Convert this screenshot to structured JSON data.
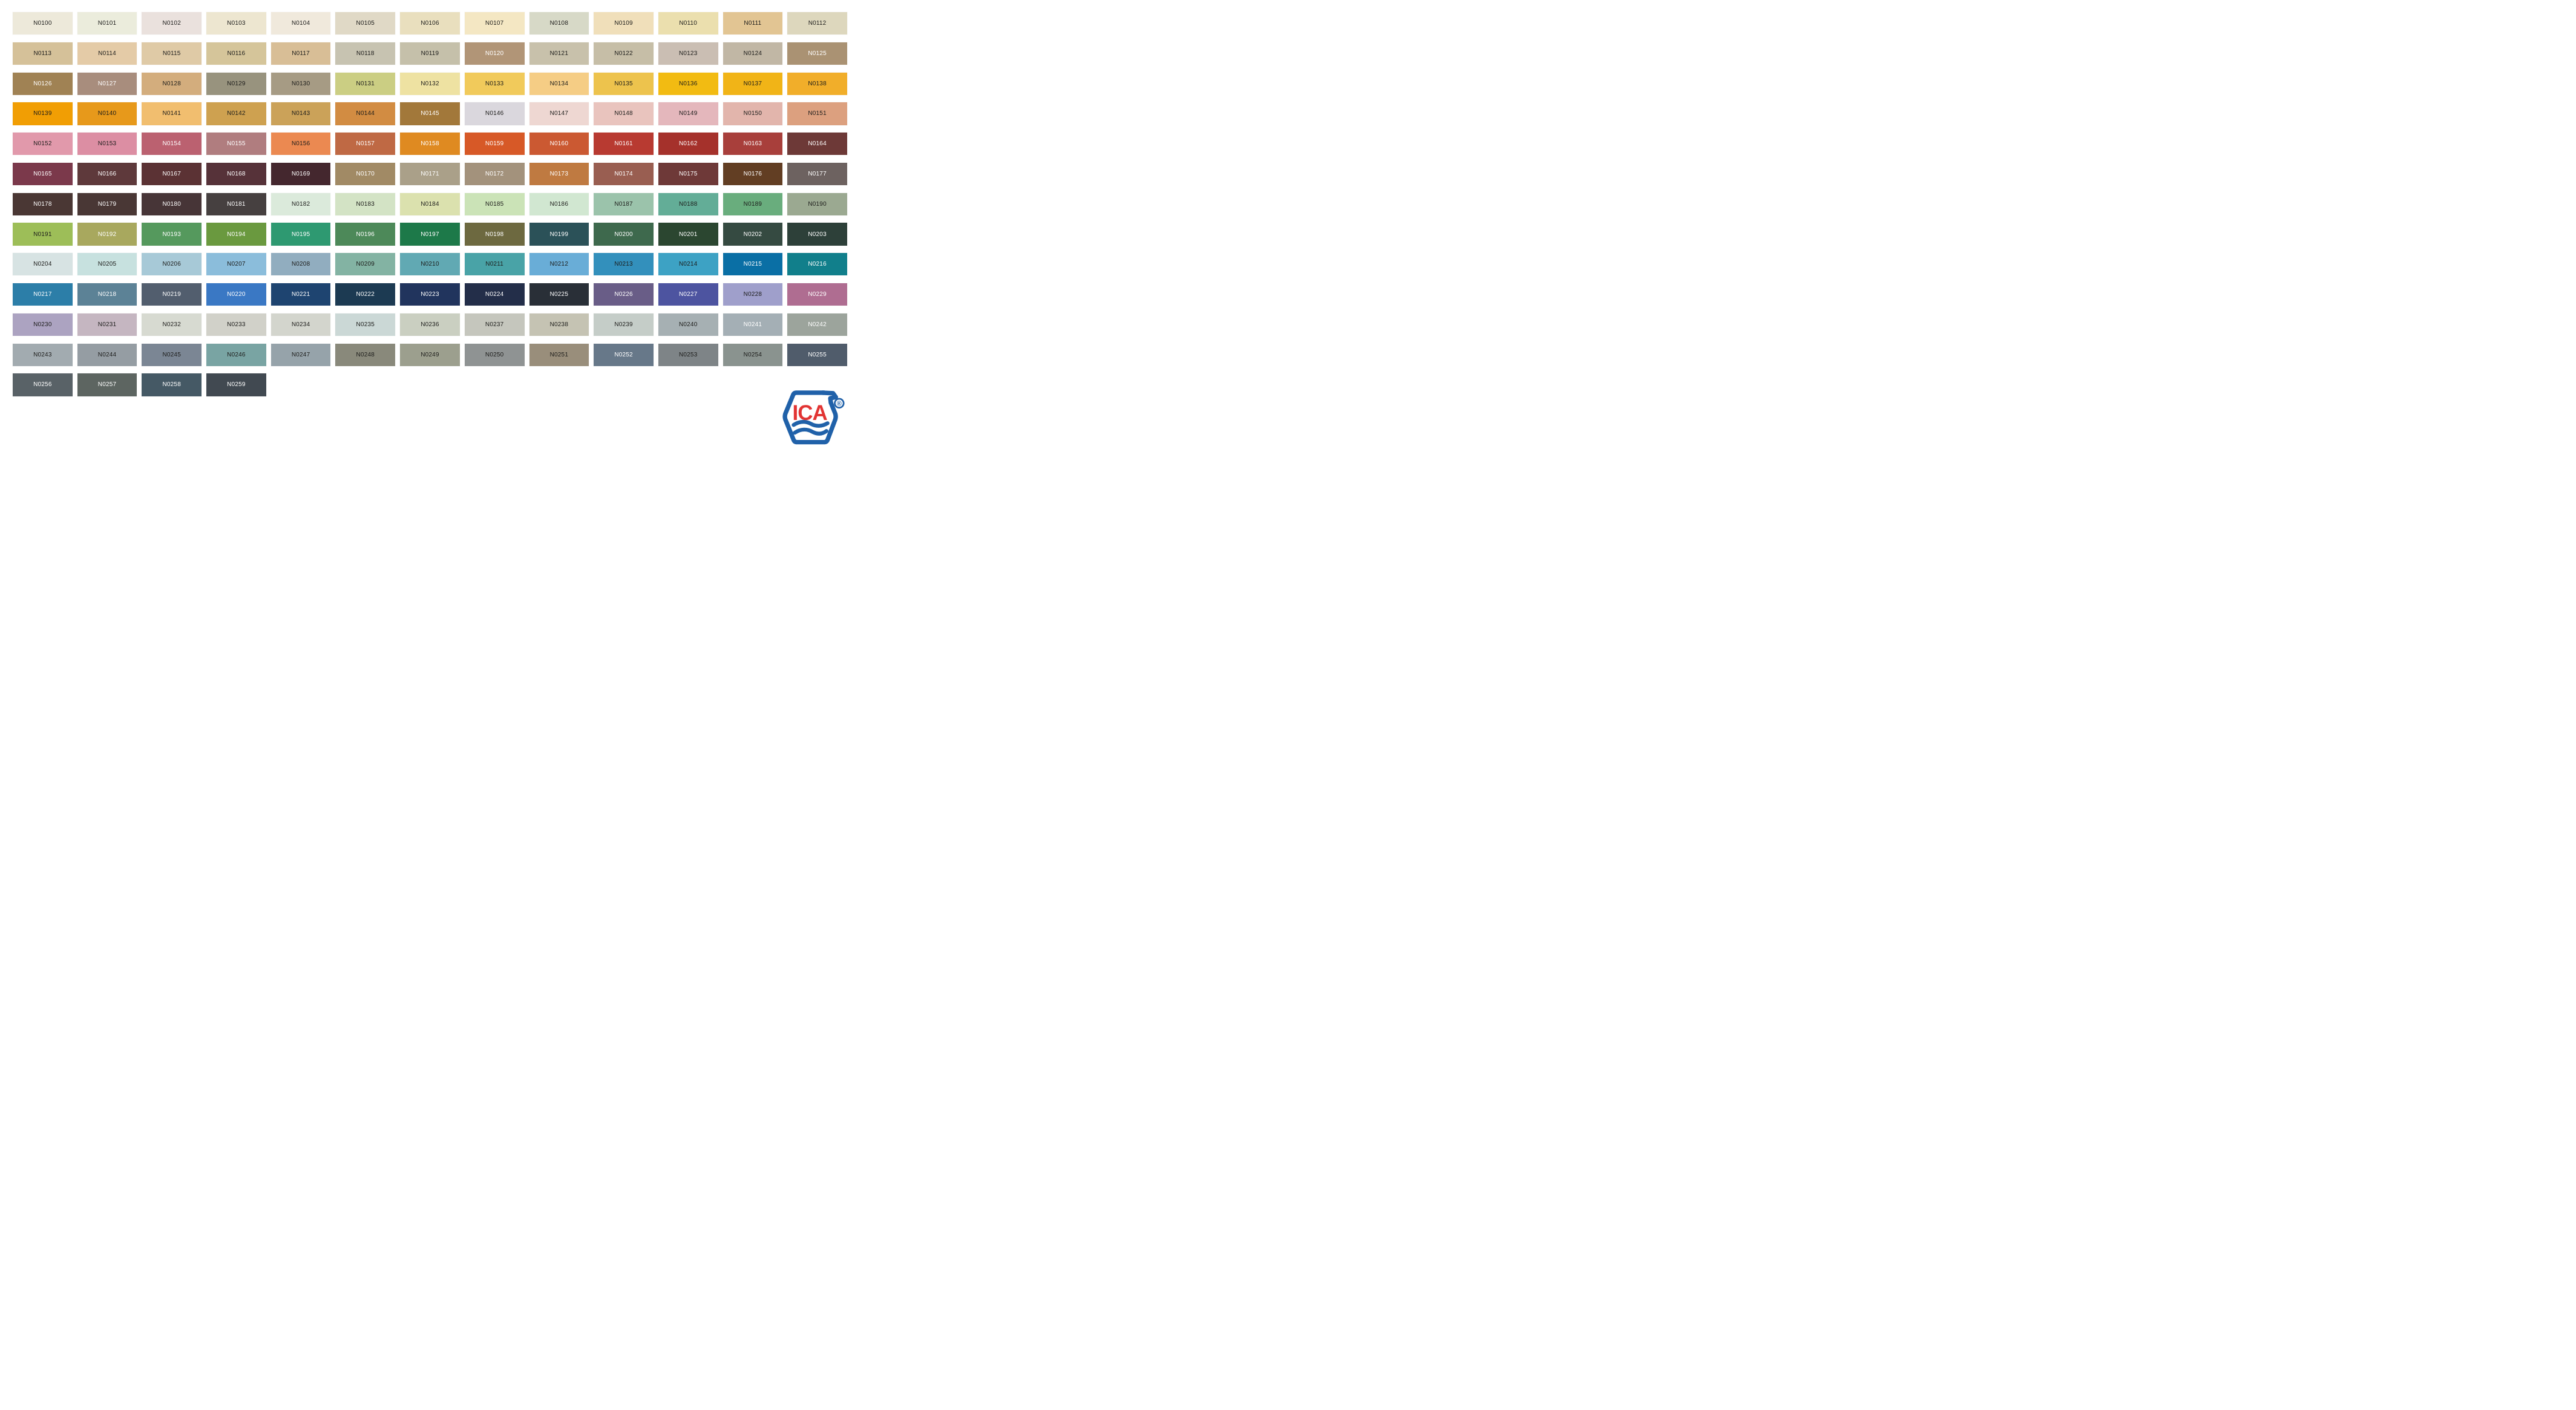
{
  "page": {
    "background": "#ffffff"
  },
  "label_colors": {
    "dark": "#1c1c1a",
    "light": "#ffffff"
  },
  "logo": {
    "text": "ICA",
    "registered": "®",
    "blue": "#2061A9",
    "red": "#E23433"
  },
  "grid": {
    "columns": 13,
    "rows": 13,
    "total_swatches": 160
  },
  "swatches": [
    {
      "code": "N0100",
      "color": "#EDE9DA",
      "label": "dark"
    },
    {
      "code": "N0101",
      "color": "#EBECDC",
      "label": "dark"
    },
    {
      "code": "N0102",
      "color": "#EAE1DD",
      "label": "dark"
    },
    {
      "code": "N0103",
      "color": "#EDE6D0",
      "label": "dark"
    },
    {
      "code": "N0104",
      "color": "#F0E9DC",
      "label": "dark"
    },
    {
      "code": "N0105",
      "color": "#E0D9C6",
      "label": "dark"
    },
    {
      "code": "N0106",
      "color": "#E9DFBE",
      "label": "dark"
    },
    {
      "code": "N0107",
      "color": "#F4E7C3",
      "label": "dark"
    },
    {
      "code": "N0108",
      "color": "#D7D9C7",
      "label": "dark"
    },
    {
      "code": "N0109",
      "color": "#F0DFBA",
      "label": "dark"
    },
    {
      "code": "N0110",
      "color": "#EBDFAE",
      "label": "dark"
    },
    {
      "code": "N0111",
      "color": "#E2C593",
      "label": "dark"
    },
    {
      "code": "N0112",
      "color": "#DDD7BD",
      "label": "dark"
    },
    {
      "code": "N0113",
      "color": "#D5C199",
      "label": "dark"
    },
    {
      "code": "N0114",
      "color": "#E4CBA7",
      "label": "dark"
    },
    {
      "code": "N0115",
      "color": "#DFCAA6",
      "label": "dark"
    },
    {
      "code": "N0116",
      "color": "#D5C59A",
      "label": "dark"
    },
    {
      "code": "N0117",
      "color": "#D8BE96",
      "label": "dark"
    },
    {
      "code": "N0118",
      "color": "#C7C3B1",
      "label": "dark"
    },
    {
      "code": "N0119",
      "color": "#C5C0AA",
      "label": "dark"
    },
    {
      "code": "N0120",
      "color": "#B19577",
      "label": "light"
    },
    {
      "code": "N0121",
      "color": "#C8C1AB",
      "label": "dark"
    },
    {
      "code": "N0122",
      "color": "#C6BEA7",
      "label": "dark"
    },
    {
      "code": "N0123",
      "color": "#CABEB3",
      "label": "dark"
    },
    {
      "code": "N0124",
      "color": "#C1B7A5",
      "label": "dark"
    },
    {
      "code": "N0125",
      "color": "#AA9273",
      "label": "light"
    },
    {
      "code": "N0126",
      "color": "#A08254",
      "label": "light"
    },
    {
      "code": "N0127",
      "color": "#A88D7D",
      "label": "light"
    },
    {
      "code": "N0128",
      "color": "#D3AD7D",
      "label": "dark"
    },
    {
      "code": "N0129",
      "color": "#98937E",
      "label": "dark"
    },
    {
      "code": "N0130",
      "color": "#A69B84",
      "label": "dark"
    },
    {
      "code": "N0131",
      "color": "#CBCE83",
      "label": "dark"
    },
    {
      "code": "N0132",
      "color": "#EEE2A2",
      "label": "dark"
    },
    {
      "code": "N0133",
      "color": "#F1CA5B",
      "label": "dark"
    },
    {
      "code": "N0134",
      "color": "#F5CD85",
      "label": "dark"
    },
    {
      "code": "N0135",
      "color": "#EDC34D",
      "label": "dark"
    },
    {
      "code": "N0136",
      "color": "#F2BB12",
      "label": "dark"
    },
    {
      "code": "N0137",
      "color": "#F1B417",
      "label": "dark"
    },
    {
      "code": "N0138",
      "color": "#F1AE2A",
      "label": "dark"
    },
    {
      "code": "N0139",
      "color": "#F19E04",
      "label": "dark"
    },
    {
      "code": "N0140",
      "color": "#E7991B",
      "label": "dark"
    },
    {
      "code": "N0141",
      "color": "#F1BE6F",
      "label": "dark"
    },
    {
      "code": "N0142",
      "color": "#CEA150",
      "label": "dark"
    },
    {
      "code": "N0143",
      "color": "#CBA259",
      "label": "dark"
    },
    {
      "code": "N0144",
      "color": "#D28C42",
      "label": "dark"
    },
    {
      "code": "N0145",
      "color": "#A2783A",
      "label": "light"
    },
    {
      "code": "N0146",
      "color": "#DAD7DD",
      "label": "dark"
    },
    {
      "code": "N0147",
      "color": "#EED7D2",
      "label": "dark"
    },
    {
      "code": "N0148",
      "color": "#E9C4BE",
      "label": "dark"
    },
    {
      "code": "N0149",
      "color": "#E4B7BC",
      "label": "dark"
    },
    {
      "code": "N0150",
      "color": "#E2B5AC",
      "label": "dark"
    },
    {
      "code": "N0151",
      "color": "#DCA07F",
      "label": "dark"
    },
    {
      "code": "N0152",
      "color": "#E199AB",
      "label": "dark"
    },
    {
      "code": "N0153",
      "color": "#DC8EA3",
      "label": "dark"
    },
    {
      "code": "N0154",
      "color": "#BB6170",
      "label": "light"
    },
    {
      "code": "N0155",
      "color": "#B07D7F",
      "label": "light"
    },
    {
      "code": "N0156",
      "color": "#EB8951",
      "label": "dark"
    },
    {
      "code": "N0157",
      "color": "#BF6944",
      "label": "light"
    },
    {
      "code": "N0158",
      "color": "#DF8A21",
      "label": "light"
    },
    {
      "code": "N0159",
      "color": "#D75927",
      "label": "light"
    },
    {
      "code": "N0160",
      "color": "#CB5932",
      "label": "light"
    },
    {
      "code": "N0161",
      "color": "#B83A31",
      "label": "light"
    },
    {
      "code": "N0162",
      "color": "#A5312B",
      "label": "light"
    },
    {
      "code": "N0163",
      "color": "#A83F3B",
      "label": "light"
    },
    {
      "code": "N0164",
      "color": "#6D3937",
      "label": "light"
    },
    {
      "code": "N0165",
      "color": "#7B394B",
      "label": "light"
    },
    {
      "code": "N0166",
      "color": "#5E393B",
      "label": "light"
    },
    {
      "code": "N0167",
      "color": "#5B3234",
      "label": "light"
    },
    {
      "code": "N0168",
      "color": "#563239",
      "label": "light"
    },
    {
      "code": "N0169",
      "color": "#44272E",
      "label": "light"
    },
    {
      "code": "N0170",
      "color": "#A18A65",
      "label": "light"
    },
    {
      "code": "N0171",
      "color": "#AAA089",
      "label": "light"
    },
    {
      "code": "N0172",
      "color": "#A3927C",
      "label": "light"
    },
    {
      "code": "N0173",
      "color": "#BF7A41",
      "label": "light"
    },
    {
      "code": "N0174",
      "color": "#995E51",
      "label": "light"
    },
    {
      "code": "N0175",
      "color": "#6E3938",
      "label": "light"
    },
    {
      "code": "N0176",
      "color": "#623E23",
      "label": "light"
    },
    {
      "code": "N0177",
      "color": "#6D6260",
      "label": "light"
    },
    {
      "code": "N0178",
      "color": "#4A3734",
      "label": "light"
    },
    {
      "code": "N0179",
      "color": "#493735",
      "label": "light"
    },
    {
      "code": "N0180",
      "color": "#473537",
      "label": "light"
    },
    {
      "code": "N0181",
      "color": "#464040",
      "label": "light"
    },
    {
      "code": "N0182",
      "color": "#DBEADB",
      "label": "dark"
    },
    {
      "code": "N0183",
      "color": "#D3E3C5",
      "label": "dark"
    },
    {
      "code": "N0184",
      "color": "#DBE1AE",
      "label": "dark"
    },
    {
      "code": "N0185",
      "color": "#CBE3B7",
      "label": "dark"
    },
    {
      "code": "N0186",
      "color": "#D1E7D1",
      "label": "dark"
    },
    {
      "code": "N0187",
      "color": "#9BC3AB",
      "label": "dark"
    },
    {
      "code": "N0188",
      "color": "#63AD97",
      "label": "dark"
    },
    {
      "code": "N0189",
      "color": "#69AD7D",
      "label": "dark"
    },
    {
      "code": "N0190",
      "color": "#9BA991",
      "label": "dark"
    },
    {
      "code": "N0191",
      "color": "#9DBE58",
      "label": "dark"
    },
    {
      "code": "N0192",
      "color": "#A8A85E",
      "label": "light"
    },
    {
      "code": "N0193",
      "color": "#55995D",
      "label": "light"
    },
    {
      "code": "N0194",
      "color": "#6A993F",
      "label": "light"
    },
    {
      "code": "N0195",
      "color": "#2E9971",
      "label": "light"
    },
    {
      "code": "N0196",
      "color": "#4D8959",
      "label": "light"
    },
    {
      "code": "N0197",
      "color": "#1D7949",
      "label": "light"
    },
    {
      "code": "N0198",
      "color": "#6D6940",
      "label": "light"
    },
    {
      "code": "N0199",
      "color": "#2B5158",
      "label": "light"
    },
    {
      "code": "N0200",
      "color": "#3E694D",
      "label": "light"
    },
    {
      "code": "N0201",
      "color": "#2B4630",
      "label": "light"
    },
    {
      "code": "N0202",
      "color": "#354A41",
      "label": "light"
    },
    {
      "code": "N0203",
      "color": "#2D4039",
      "label": "light"
    },
    {
      "code": "N0204",
      "color": "#D7E3E3",
      "label": "dark"
    },
    {
      "code": "N0205",
      "color": "#C7E1DF",
      "label": "dark"
    },
    {
      "code": "N0206",
      "color": "#A7C9D7",
      "label": "dark"
    },
    {
      "code": "N0207",
      "color": "#8BBDDB",
      "label": "dark"
    },
    {
      "code": "N0208",
      "color": "#91ADBF",
      "label": "dark"
    },
    {
      "code": "N0209",
      "color": "#83B3A3",
      "label": "dark"
    },
    {
      "code": "N0210",
      "color": "#61A9B3",
      "label": "dark"
    },
    {
      "code": "N0211",
      "color": "#49A3A7",
      "label": "dark"
    },
    {
      "code": "N0212",
      "color": "#69ADD7",
      "label": "dark"
    },
    {
      "code": "N0213",
      "color": "#3390BC",
      "label": "dark"
    },
    {
      "code": "N0214",
      "color": "#3DA2C4",
      "label": "dark"
    },
    {
      "code": "N0215",
      "color": "#0A6FA5",
      "label": "light"
    },
    {
      "code": "N0216",
      "color": "#117F8B",
      "label": "light"
    },
    {
      "code": "N0217",
      "color": "#2C7EA8",
      "label": "light"
    },
    {
      "code": "N0218",
      "color": "#5C8296",
      "label": "light"
    },
    {
      "code": "N0219",
      "color": "#525E6E",
      "label": "light"
    },
    {
      "code": "N0220",
      "color": "#3A78C4",
      "label": "light"
    },
    {
      "code": "N0221",
      "color": "#1E4470",
      "label": "light"
    },
    {
      "code": "N0222",
      "color": "#1C3A52",
      "label": "light"
    },
    {
      "code": "N0223",
      "color": "#21345D",
      "label": "light"
    },
    {
      "code": "N0224",
      "color": "#232E49",
      "label": "light"
    },
    {
      "code": "N0225",
      "color": "#292F37",
      "label": "light"
    },
    {
      "code": "N0226",
      "color": "#695D87",
      "label": "light"
    },
    {
      "code": "N0227",
      "color": "#4D54A0",
      "label": "light"
    },
    {
      "code": "N0228",
      "color": "#9F9FCB",
      "label": "dark"
    },
    {
      "code": "N0229",
      "color": "#AF6D91",
      "label": "light"
    },
    {
      "code": "N0230",
      "color": "#ACA3C1",
      "label": "dark"
    },
    {
      "code": "N0231",
      "color": "#C5B6C1",
      "label": "dark"
    },
    {
      "code": "N0232",
      "color": "#D7DAD1",
      "label": "dark"
    },
    {
      "code": "N0233",
      "color": "#D1D1C9",
      "label": "dark"
    },
    {
      "code": "N0234",
      "color": "#D3D5CD",
      "label": "dark"
    },
    {
      "code": "N0235",
      "color": "#CBD8D6",
      "label": "dark"
    },
    {
      "code": "N0236",
      "color": "#CACFC1",
      "label": "dark"
    },
    {
      "code": "N0237",
      "color": "#C5C6BD",
      "label": "dark"
    },
    {
      "code": "N0238",
      "color": "#C5C3B3",
      "label": "dark"
    },
    {
      "code": "N0239",
      "color": "#C5CDC8",
      "label": "dark"
    },
    {
      "code": "N0240",
      "color": "#A6B0B3",
      "label": "dark"
    },
    {
      "code": "N0241",
      "color": "#A4AFB5",
      "label": "light"
    },
    {
      "code": "N0242",
      "color": "#9CA49C",
      "label": "light"
    },
    {
      "code": "N0243",
      "color": "#A2ABB0",
      "label": "dark"
    },
    {
      "code": "N0244",
      "color": "#959DA3",
      "label": "dark"
    },
    {
      "code": "N0245",
      "color": "#7B8694",
      "label": "dark"
    },
    {
      "code": "N0246",
      "color": "#79A4A3",
      "label": "dark"
    },
    {
      "code": "N0247",
      "color": "#96A3AA",
      "label": "dark"
    },
    {
      "code": "N0248",
      "color": "#89897B",
      "label": "dark"
    },
    {
      "code": "N0249",
      "color": "#9C9F8E",
      "label": "dark"
    },
    {
      "code": "N0250",
      "color": "#8F9393",
      "label": "dark"
    },
    {
      "code": "N0251",
      "color": "#998E7B",
      "label": "dark"
    },
    {
      "code": "N0252",
      "color": "#677889",
      "label": "light"
    },
    {
      "code": "N0253",
      "color": "#7E8487",
      "label": "dark"
    },
    {
      "code": "N0254",
      "color": "#8A938F",
      "label": "dark"
    },
    {
      "code": "N0255",
      "color": "#505C6B",
      "label": "light"
    },
    {
      "code": "N0256",
      "color": "#596267",
      "label": "light"
    },
    {
      "code": "N0257",
      "color": "#5D6561",
      "label": "light"
    },
    {
      "code": "N0258",
      "color": "#455965",
      "label": "light"
    },
    {
      "code": "N0259",
      "color": "#414951",
      "label": "light"
    }
  ]
}
